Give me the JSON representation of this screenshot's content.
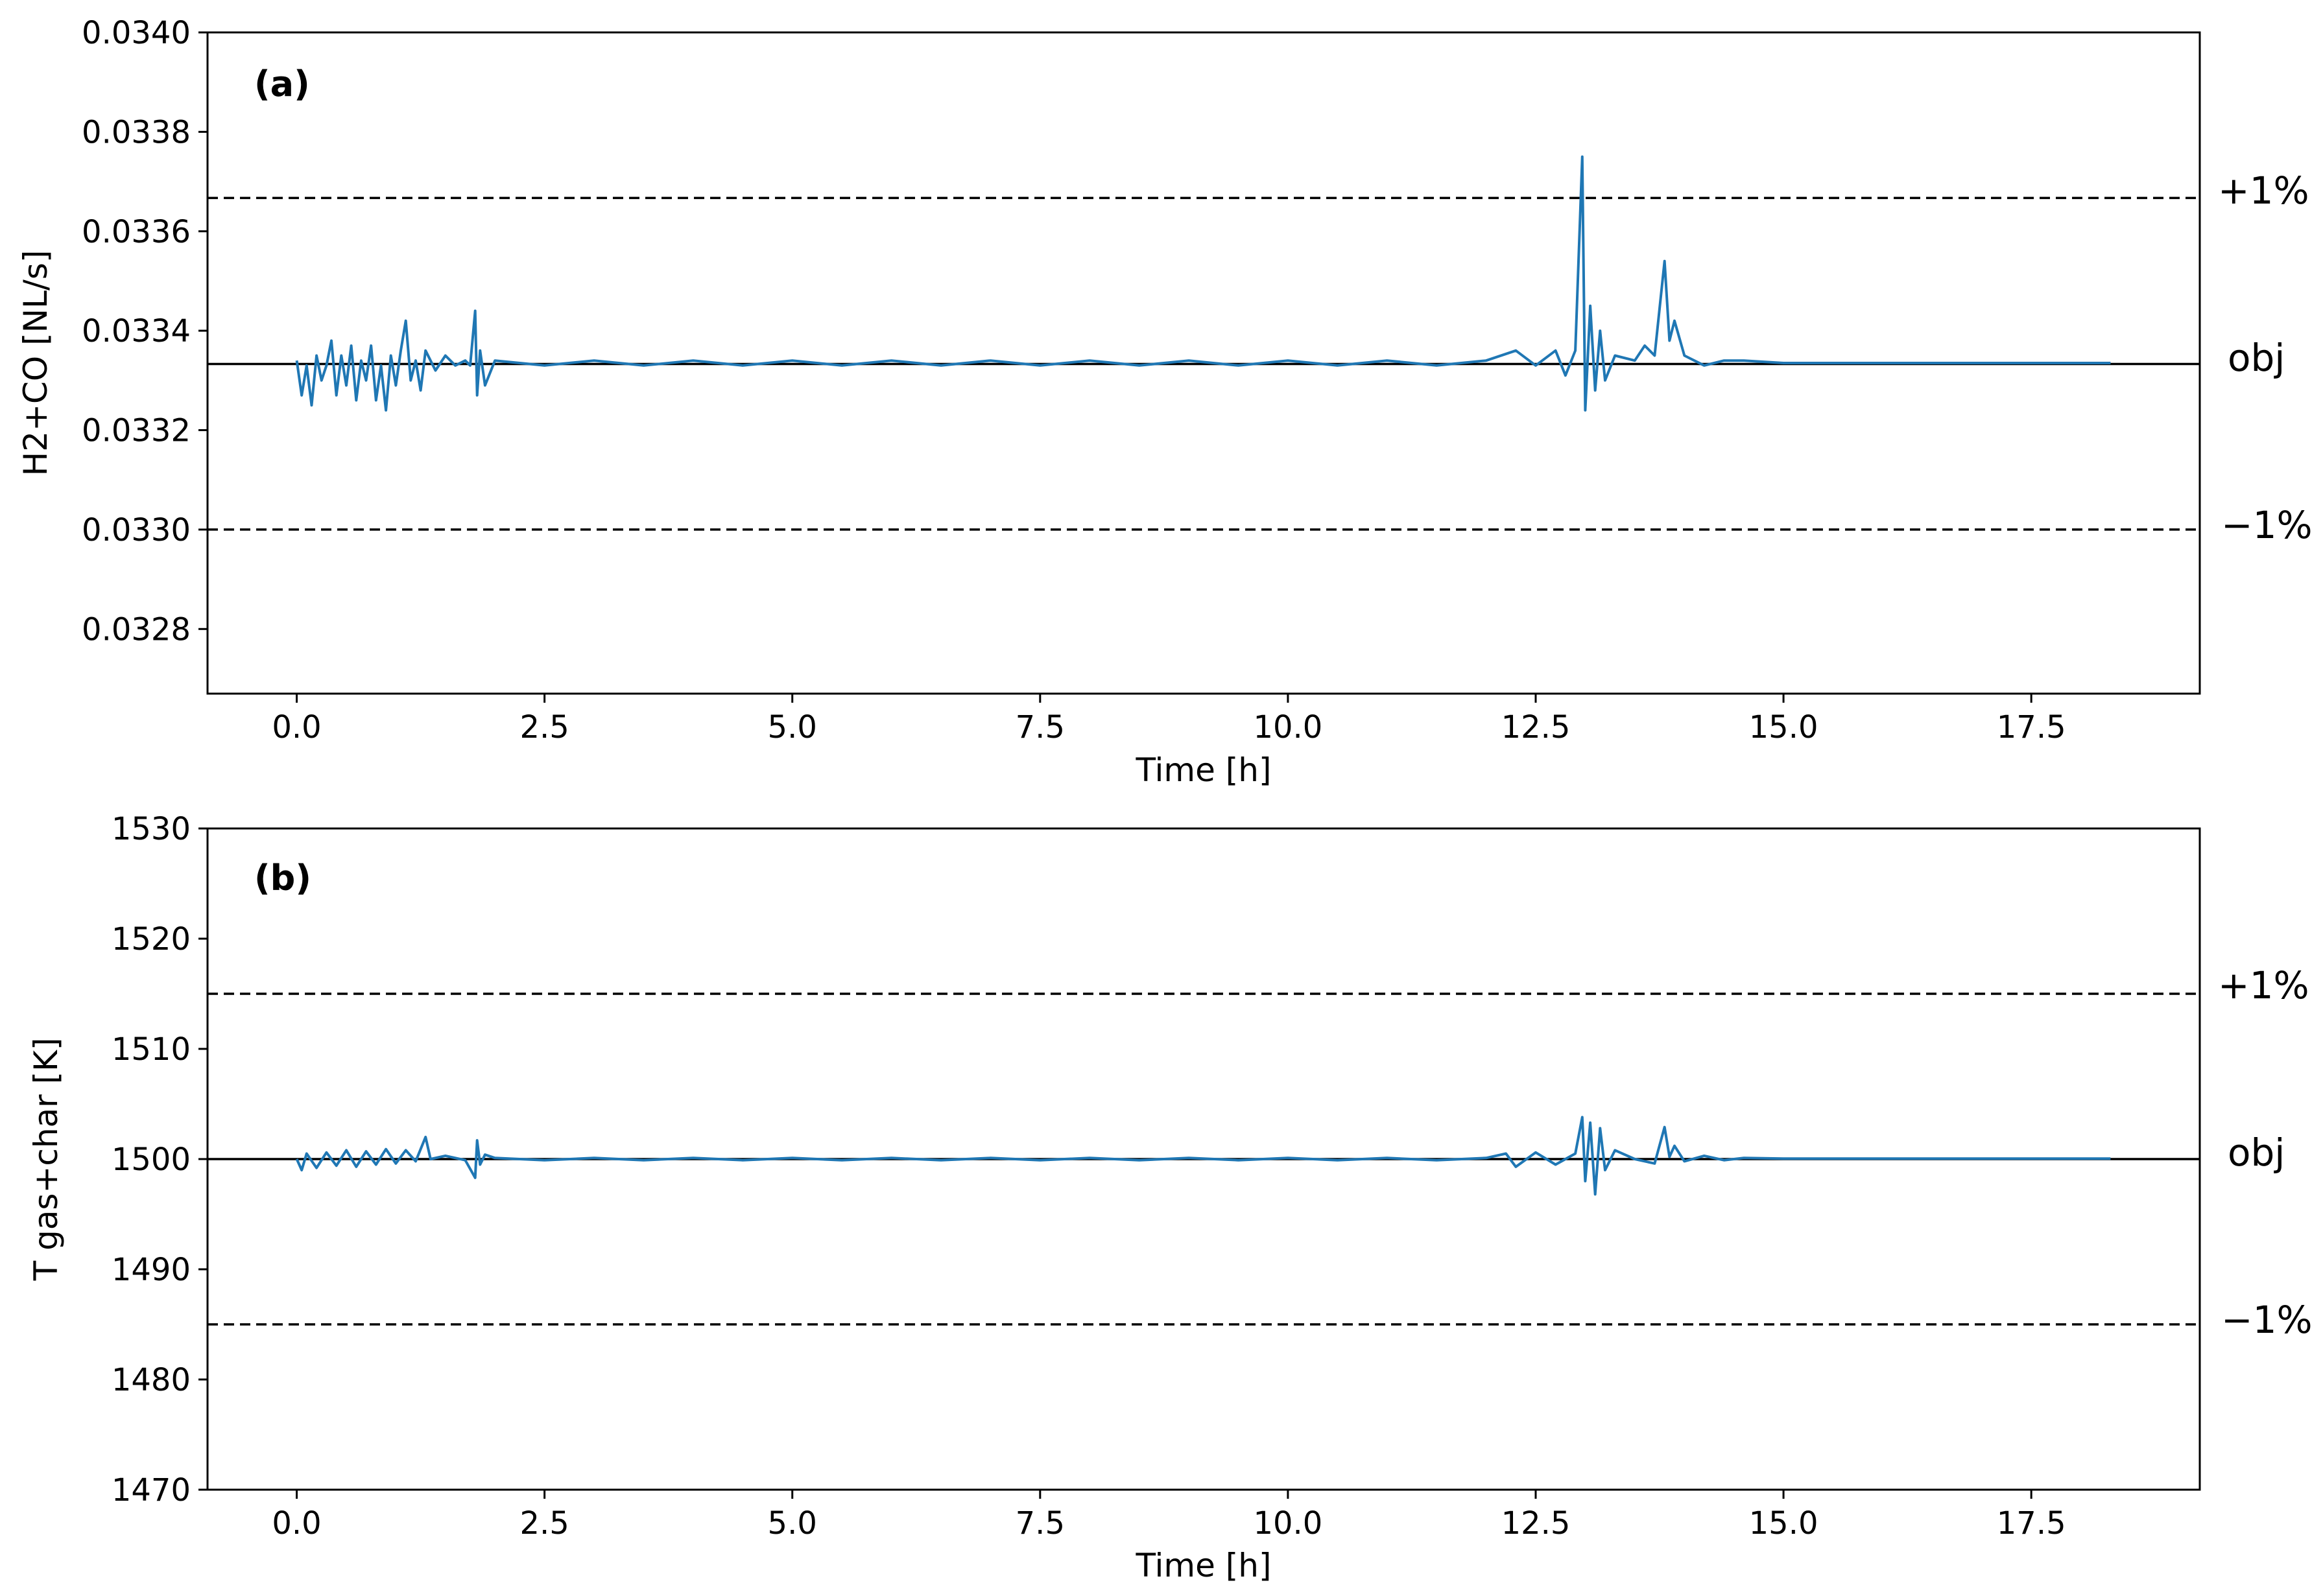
{
  "chart_data": [
    {
      "type": "line",
      "panel_label": "(a)",
      "xlabel": "Time [h]",
      "ylabel": "H2+CO [NL/s]",
      "xlim": [
        -0.9,
        19.2
      ],
      "ylim": [
        0.03267,
        0.034
      ],
      "x_ticks": [
        0.0,
        2.5,
        5.0,
        7.5,
        10.0,
        12.5,
        15.0,
        17.5
      ],
      "x_tick_labels": [
        "0.0",
        "2.5",
        "5.0",
        "7.5",
        "10.0",
        "12.5",
        "15.0",
        "17.5"
      ],
      "y_ticks": [
        0.0328,
        0.033,
        0.0332,
        0.0334,
        0.0336,
        0.0338,
        0.034
      ],
      "y_tick_labels": [
        "0.0328",
        "0.0330",
        "0.0332",
        "0.0334",
        "0.0336",
        "0.0338",
        "0.0340"
      ],
      "grid": false,
      "objective": 0.033333,
      "upper_band": 0.033667,
      "lower_band": 0.033,
      "reference_labels": {
        "upper": "+1%",
        "objective": "obj",
        "lower": "−1%"
      },
      "series": [
        {
          "color": "#1f77b4",
          "x_range": [
            0.0,
            18.3
          ],
          "points": [
            [
              0.0,
              0.03334
            ],
            [
              0.05,
              0.03327
            ],
            [
              0.1,
              0.03333
            ],
            [
              0.15,
              0.03325
            ],
            [
              0.2,
              0.03335
            ],
            [
              0.25,
              0.0333
            ],
            [
              0.3,
              0.03333
            ],
            [
              0.35,
              0.03338
            ],
            [
              0.4,
              0.03327
            ],
            [
              0.45,
              0.03335
            ],
            [
              0.5,
              0.03329
            ],
            [
              0.55,
              0.03337
            ],
            [
              0.6,
              0.03326
            ],
            [
              0.65,
              0.03334
            ],
            [
              0.7,
              0.0333
            ],
            [
              0.75,
              0.03337
            ],
            [
              0.8,
              0.03326
            ],
            [
              0.85,
              0.03333
            ],
            [
              0.9,
              0.03324
            ],
            [
              0.95,
              0.03335
            ],
            [
              1.0,
              0.03329
            ],
            [
              1.05,
              0.03336
            ],
            [
              1.1,
              0.03342
            ],
            [
              1.15,
              0.0333
            ],
            [
              1.2,
              0.03334
            ],
            [
              1.25,
              0.03328
            ],
            [
              1.3,
              0.03336
            ],
            [
              1.4,
              0.03332
            ],
            [
              1.5,
              0.03335
            ],
            [
              1.6,
              0.03333
            ],
            [
              1.7,
              0.03334
            ],
            [
              1.75,
              0.03333
            ],
            [
              1.8,
              0.03344
            ],
            [
              1.82,
              0.03327
            ],
            [
              1.85,
              0.03336
            ],
            [
              1.9,
              0.03329
            ],
            [
              2.0,
              0.03334
            ],
            [
              2.5,
              0.03333
            ],
            [
              3.0,
              0.03334
            ],
            [
              3.5,
              0.03333
            ],
            [
              4.0,
              0.03334
            ],
            [
              4.5,
              0.03333
            ],
            [
              5.0,
              0.03334
            ],
            [
              5.5,
              0.03333
            ],
            [
              6.0,
              0.03334
            ],
            [
              6.5,
              0.03333
            ],
            [
              7.0,
              0.03334
            ],
            [
              7.5,
              0.03333
            ],
            [
              8.0,
              0.03334
            ],
            [
              8.5,
              0.03333
            ],
            [
              9.0,
              0.03334
            ],
            [
              9.5,
              0.03333
            ],
            [
              10.0,
              0.03334
            ],
            [
              10.5,
              0.03333
            ],
            [
              11.0,
              0.03334
            ],
            [
              11.5,
              0.03333
            ],
            [
              12.0,
              0.03334
            ],
            [
              12.3,
              0.03336
            ],
            [
              12.5,
              0.03333
            ],
            [
              12.7,
              0.03336
            ],
            [
              12.8,
              0.03331
            ],
            [
              12.9,
              0.03336
            ],
            [
              12.97,
              0.03375
            ],
            [
              13.0,
              0.03324
            ],
            [
              13.05,
              0.03345
            ],
            [
              13.1,
              0.03328
            ],
            [
              13.15,
              0.0334
            ],
            [
              13.2,
              0.0333
            ],
            [
              13.3,
              0.03335
            ],
            [
              13.5,
              0.03334
            ],
            [
              13.6,
              0.03337
            ],
            [
              13.7,
              0.03335
            ],
            [
              13.8,
              0.03354
            ],
            [
              13.85,
              0.03338
            ],
            [
              13.9,
              0.03342
            ],
            [
              14.0,
              0.03335
            ],
            [
              14.2,
              0.03333
            ],
            [
              14.4,
              0.03334
            ],
            [
              14.6,
              0.03334
            ],
            [
              15.0,
              0.033335
            ],
            [
              16.0,
              0.033335
            ],
            [
              17.0,
              0.033335
            ],
            [
              18.3,
              0.033335
            ]
          ]
        }
      ]
    },
    {
      "type": "line",
      "panel_label": "(b)",
      "xlabel": "Time [h]",
      "ylabel": "T gas+char [K]",
      "xlim": [
        -0.9,
        19.2
      ],
      "ylim": [
        1470,
        1530
      ],
      "x_ticks": [
        0.0,
        2.5,
        5.0,
        7.5,
        10.0,
        12.5,
        15.0,
        17.5
      ],
      "x_tick_labels": [
        "0.0",
        "2.5",
        "5.0",
        "7.5",
        "10.0",
        "12.5",
        "15.0",
        "17.5"
      ],
      "y_ticks": [
        1470,
        1480,
        1490,
        1500,
        1510,
        1520,
        1530
      ],
      "y_tick_labels": [
        "1470",
        "1480",
        "1490",
        "1500",
        "1510",
        "1520",
        "1530"
      ],
      "grid": false,
      "objective": 1500,
      "upper_band": 1515,
      "lower_band": 1485,
      "reference_labels": {
        "upper": "+1%",
        "objective": "obj",
        "lower": "−1%"
      },
      "series": [
        {
          "color": "#1f77b4",
          "x_range": [
            0.0,
            18.3
          ],
          "points": [
            [
              0.0,
              1500.0
            ],
            [
              0.05,
              1499.0
            ],
            [
              0.1,
              1500.5
            ],
            [
              0.2,
              1499.2
            ],
            [
              0.3,
              1500.6
            ],
            [
              0.4,
              1499.4
            ],
            [
              0.5,
              1500.8
            ],
            [
              0.6,
              1499.3
            ],
            [
              0.7,
              1500.7
            ],
            [
              0.8,
              1499.5
            ],
            [
              0.9,
              1500.9
            ],
            [
              1.0,
              1499.6
            ],
            [
              1.1,
              1500.8
            ],
            [
              1.2,
              1499.8
            ],
            [
              1.3,
              1502.0
            ],
            [
              1.35,
              1500.0
            ],
            [
              1.5,
              1500.3
            ],
            [
              1.7,
              1499.9
            ],
            [
              1.8,
              1498.3
            ],
            [
              1.82,
              1501.7
            ],
            [
              1.85,
              1499.5
            ],
            [
              1.9,
              1500.4
            ],
            [
              2.0,
              1500.1
            ],
            [
              2.5,
              1499.9
            ],
            [
              3.0,
              1500.1
            ],
            [
              3.5,
              1499.9
            ],
            [
              4.0,
              1500.1
            ],
            [
              4.5,
              1499.9
            ],
            [
              5.0,
              1500.1
            ],
            [
              5.5,
              1499.9
            ],
            [
              6.0,
              1500.1
            ],
            [
              6.5,
              1499.9
            ],
            [
              7.0,
              1500.1
            ],
            [
              7.5,
              1499.9
            ],
            [
              8.0,
              1500.1
            ],
            [
              8.5,
              1499.9
            ],
            [
              9.0,
              1500.1
            ],
            [
              9.5,
              1499.9
            ],
            [
              10.0,
              1500.1
            ],
            [
              10.5,
              1499.9
            ],
            [
              11.0,
              1500.1
            ],
            [
              11.5,
              1499.9
            ],
            [
              12.0,
              1500.1
            ],
            [
              12.2,
              1500.5
            ],
            [
              12.3,
              1499.3
            ],
            [
              12.5,
              1500.6
            ],
            [
              12.7,
              1499.5
            ],
            [
              12.9,
              1500.5
            ],
            [
              12.97,
              1503.8
            ],
            [
              13.0,
              1498.0
            ],
            [
              13.05,
              1503.3
            ],
            [
              13.1,
              1496.8
            ],
            [
              13.15,
              1502.8
            ],
            [
              13.2,
              1499.0
            ],
            [
              13.3,
              1500.8
            ],
            [
              13.5,
              1500.0
            ],
            [
              13.7,
              1499.6
            ],
            [
              13.8,
              1502.9
            ],
            [
              13.85,
              1500.2
            ],
            [
              13.9,
              1501.2
            ],
            [
              14.0,
              1499.8
            ],
            [
              14.2,
              1500.3
            ],
            [
              14.4,
              1499.9
            ],
            [
              14.6,
              1500.1
            ],
            [
              15.0,
              1500.05
            ],
            [
              16.0,
              1500.05
            ],
            [
              17.0,
              1500.05
            ],
            [
              18.3,
              1500.05
            ]
          ]
        }
      ]
    }
  ]
}
